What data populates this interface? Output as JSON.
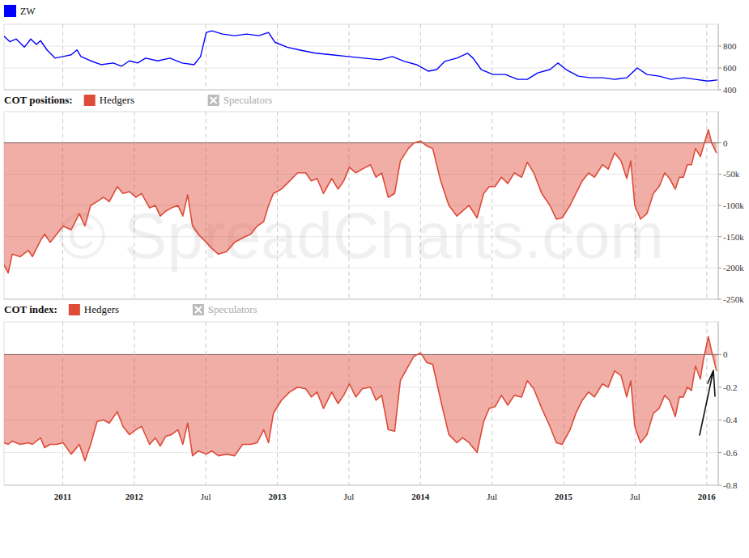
{
  "chart_data": [
    {
      "type": "line",
      "x": [
        2011.09,
        2011.13,
        2011.175,
        2011.232,
        2011.277,
        2011.316,
        2011.345,
        2011.39,
        2011.446,
        2011.503,
        2011.559,
        2011.599,
        2011.627,
        2011.695,
        2011.768,
        2011.853,
        2011.91,
        2011.966,
        2012.023,
        2012.079,
        2012.164,
        2012.249,
        2012.333,
        2012.418,
        2012.463,
        2012.503,
        2012.542,
        2012.616,
        2012.701,
        2012.785,
        2012.87,
        2012.938,
        2012.983,
        2013.068,
        2013.153,
        2013.266,
        2013.379,
        2013.492,
        2013.605,
        2013.718,
        2013.802,
        2013.887,
        2013.972,
        2014.056,
        2014.113,
        2014.169,
        2014.254,
        2014.328,
        2014.367,
        2014.424,
        2014.508,
        2014.593,
        2014.678,
        2014.746,
        2014.819,
        2014.904,
        2014.96,
        2015.017,
        2015.102,
        2015.186,
        2015.271,
        2015.356,
        2015.441,
        2015.514,
        2015.582,
        2015.667,
        2015.751,
        2015.836,
        2015.921,
        2016.006,
        2016.073
      ],
      "series": [
        {
          "name": "ZW",
          "color": "#0000ff",
          "values": [
            890,
            840,
            865,
            790,
            865,
            815,
            850,
            765,
            690,
            705,
            720,
            765,
            705,
            665,
            630,
            645,
            615,
            665,
            645,
            690,
            665,
            690,
            645,
            630,
            705,
            925,
            940,
            910,
            895,
            910,
            895,
            925,
            835,
            790,
            765,
            735,
            720,
            705,
            690,
            675,
            705,
            660,
            630,
            570,
            585,
            660,
            690,
            735,
            690,
            585,
            540,
            540,
            495,
            495,
            555,
            585,
            645,
            585,
            525,
            510,
            510,
            495,
            510,
            600,
            540,
            525,
            495,
            510,
            495,
            480,
            490
          ]
        }
      ],
      "xlim": [
        2011.09,
        2016.08
      ],
      "xticks": [
        {
          "value": 2011.5,
          "label": "2011"
        },
        2012,
        {
          "value": 2012.5,
          "label": "Jul"
        },
        2013,
        {
          "value": 2013.5,
          "label": "Jul"
        },
        2014,
        {
          "value": 2014.5,
          "label": "Jul"
        },
        2015,
        {
          "value": 2015.5,
          "label": "Jul"
        },
        2016
      ],
      "ylim": [
        400,
        1000
      ],
      "yticks": [
        400,
        600,
        800
      ],
      "grid": true,
      "legend": "top-left",
      "tick_labels": "y"
    },
    {
      "type": "area",
      "title": "COT positions:",
      "annotations": [
        "© SpreadCharts.com"
      ],
      "x": [
        2011.09,
        2011.119,
        2011.147,
        2011.203,
        2011.26,
        2011.288,
        2011.345,
        2011.373,
        2011.412,
        2011.458,
        2011.503,
        2011.559,
        2011.616,
        2011.655,
        2011.695,
        2011.74,
        2011.785,
        2011.825,
        2011.881,
        2011.921,
        2011.966,
        2012.011,
        2012.051,
        2012.107,
        2012.147,
        2012.181,
        2012.22,
        2012.26,
        2012.305,
        2012.339,
        2012.373,
        2012.407,
        2012.446,
        2012.503,
        2012.542,
        2012.588,
        2012.644,
        2012.701,
        2012.757,
        2012.814,
        2012.859,
        2012.904,
        2012.938,
        2012.972,
        2013.028,
        2013.085,
        2013.141,
        2013.198,
        2013.237,
        2013.277,
        2013.322,
        2013.379,
        2013.424,
        2013.463,
        2013.503,
        2013.548,
        2013.593,
        2013.65,
        2013.689,
        2013.729,
        2013.774,
        2013.819,
        2013.859,
        2013.915,
        2013.955,
        2014,
        2014.045,
        2014.085,
        2014.141,
        2014.198,
        2014.254,
        2014.294,
        2014.339,
        2014.395,
        2014.441,
        2014.48,
        2014.52,
        2014.565,
        2014.61,
        2014.655,
        2014.706,
        2014.746,
        2014.791,
        2014.847,
        2014.904,
        2014.949,
        2014.989,
        2015.045,
        2015.085,
        2015.13,
        2015.175,
        2015.215,
        2015.271,
        2015.311,
        2015.356,
        2015.401,
        2015.441,
        2015.469,
        2015.497,
        2015.537,
        2015.582,
        2015.627,
        2015.667,
        2015.706,
        2015.74,
        2015.78,
        2015.808,
        2015.836,
        2015.864,
        2015.893,
        2015.921,
        2015.955,
        2015.977,
        2016.011,
        2016.034,
        2016.068
      ],
      "series": [
        {
          "name": "Hedgers",
          "color": "#dd4b39",
          "values": [
            -195000,
            -208000,
            -178000,
            -182000,
            -172000,
            -182000,
            -156000,
            -146000,
            -159000,
            -146000,
            -133000,
            -139000,
            -113000,
            -133000,
            -100000,
            -94000,
            -87000,
            -94000,
            -70000,
            -81000,
            -78000,
            -87000,
            -81000,
            -104000,
            -100000,
            -117000,
            -109000,
            -104000,
            -100000,
            -117000,
            -83000,
            -133000,
            -146000,
            -159000,
            -169000,
            -178000,
            -174000,
            -159000,
            -152000,
            -146000,
            -133000,
            -126000,
            -100000,
            -81000,
            -74000,
            -61000,
            -48000,
            -48000,
            -61000,
            -57000,
            -81000,
            -57000,
            -74000,
            -61000,
            -39000,
            -48000,
            -42000,
            -35000,
            -55000,
            -48000,
            -87000,
            -81000,
            -29000,
            -9000,
            0,
            3000,
            -5000,
            -9000,
            -61000,
            -100000,
            -117000,
            -109000,
            -100000,
            -120000,
            -81000,
            -70000,
            -70000,
            -55000,
            -65000,
            -48000,
            -55000,
            -31000,
            -48000,
            -81000,
            -100000,
            -122000,
            -120000,
            -100000,
            -81000,
            -61000,
            -48000,
            -55000,
            -35000,
            -42000,
            -16000,
            -29000,
            -57000,
            -29000,
            -100000,
            -122000,
            -113000,
            -81000,
            -70000,
            -48000,
            -57000,
            -74000,
            -55000,
            -55000,
            -35000,
            -35000,
            -9000,
            -22000,
            -5000,
            21000,
            0,
            -16000
          ]
        },
        {
          "name": "Speculators",
          "color": "#bbbbbb",
          "values": [
            null,
            null,
            null,
            null,
            null,
            null,
            null,
            null,
            null,
            null,
            null,
            null,
            null,
            null,
            null,
            null,
            null,
            null,
            null,
            null,
            null,
            null,
            null,
            null,
            null,
            null,
            null,
            null,
            null,
            null,
            null,
            null,
            null,
            null,
            null,
            null,
            null,
            null,
            null,
            null,
            null,
            null,
            null,
            null,
            null,
            null,
            null,
            null,
            null,
            null,
            null,
            null,
            null,
            null,
            null,
            null,
            null,
            null,
            null,
            null,
            null,
            null,
            null,
            null,
            null,
            null,
            null,
            null,
            null,
            null,
            null,
            null,
            null,
            null,
            null,
            null,
            null,
            null,
            null,
            null,
            null,
            null,
            null,
            null,
            null,
            null,
            null,
            null,
            null,
            null,
            null,
            null,
            null,
            null,
            null,
            null,
            null,
            null,
            null,
            null,
            null,
            null,
            null,
            null,
            null,
            null,
            null,
            null,
            null,
            null,
            null,
            null,
            null,
            null,
            null,
            null
          ]
        }
      ],
      "xlim": [
        2011.09,
        2016.08
      ],
      "xticks": [
        {
          "value": 2011.5,
          "label": "2011"
        },
        2012,
        {
          "value": 2012.5,
          "label": "Jul"
        },
        2013,
        {
          "value": 2013.5,
          "label": "Jul"
        },
        2014,
        {
          "value": 2014.5,
          "label": "Jul"
        },
        2015,
        {
          "value": 2015.5,
          "label": "Jul"
        },
        2016
      ],
      "ylim": [
        -250000,
        50000
      ],
      "yticks": [
        0,
        {
          "value": -50000,
          "label": "-50k"
        },
        {
          "value": -100000,
          "label": "-100k"
        },
        {
          "value": -150000,
          "label": "-150k"
        },
        {
          "value": -200000,
          "label": "-200k"
        },
        {
          "value": -250000,
          "label": "-250k"
        }
      ],
      "grid": true,
      "legend": "top-left",
      "tick_labels": "y"
    },
    {
      "type": "area",
      "title": "COT index:",
      "x": [
        2011.09,
        2011.119,
        2011.147,
        2011.203,
        2011.26,
        2011.288,
        2011.345,
        2011.373,
        2011.412,
        2011.458,
        2011.503,
        2011.559,
        2011.616,
        2011.655,
        2011.695,
        2011.74,
        2011.785,
        2011.825,
        2011.881,
        2011.921,
        2011.966,
        2012.011,
        2012.051,
        2012.107,
        2012.147,
        2012.181,
        2012.22,
        2012.26,
        2012.305,
        2012.339,
        2012.373,
        2012.407,
        2012.446,
        2012.503,
        2012.542,
        2012.588,
        2012.644,
        2012.701,
        2012.757,
        2012.814,
        2012.859,
        2012.904,
        2012.938,
        2012.972,
        2013.028,
        2013.085,
        2013.141,
        2013.198,
        2013.237,
        2013.277,
        2013.322,
        2013.379,
        2013.424,
        2013.463,
        2013.503,
        2013.548,
        2013.593,
        2013.65,
        2013.689,
        2013.729,
        2013.774,
        2013.819,
        2013.859,
        2013.915,
        2013.955,
        2014,
        2014.045,
        2014.085,
        2014.141,
        2014.198,
        2014.254,
        2014.294,
        2014.339,
        2014.395,
        2014.441,
        2014.48,
        2014.52,
        2014.565,
        2014.61,
        2014.655,
        2014.706,
        2014.746,
        2014.791,
        2014.847,
        2014.904,
        2014.949,
        2014.989,
        2015.045,
        2015.085,
        2015.13,
        2015.175,
        2015.215,
        2015.271,
        2015.311,
        2015.356,
        2015.401,
        2015.441,
        2015.469,
        2015.497,
        2015.537,
        2015.582,
        2015.627,
        2015.667,
        2015.706,
        2015.74,
        2015.78,
        2015.808,
        2015.836,
        2015.864,
        2015.893,
        2015.921,
        2015.955,
        2015.977,
        2016.011,
        2016.034,
        2016.068
      ],
      "series": [
        {
          "name": "Hedgers",
          "color": "#dd4b39",
          "values": [
            -0.54,
            -0.55,
            -0.53,
            -0.55,
            -0.54,
            -0.55,
            -0.51,
            -0.57,
            -0.55,
            -0.55,
            -0.54,
            -0.61,
            -0.55,
            -0.65,
            -0.55,
            -0.41,
            -0.4,
            -0.42,
            -0.35,
            -0.44,
            -0.49,
            -0.46,
            -0.44,
            -0.55,
            -0.51,
            -0.56,
            -0.5,
            -0.49,
            -0.46,
            -0.55,
            -0.42,
            -0.62,
            -0.59,
            -0.61,
            -0.59,
            -0.62,
            -0.61,
            -0.62,
            -0.55,
            -0.55,
            -0.54,
            -0.46,
            -0.54,
            -0.36,
            -0.28,
            -0.23,
            -0.2,
            -0.21,
            -0.26,
            -0.23,
            -0.33,
            -0.23,
            -0.3,
            -0.25,
            -0.18,
            -0.26,
            -0.21,
            -0.2,
            -0.28,
            -0.25,
            -0.46,
            -0.47,
            -0.16,
            -0.07,
            -0.01,
            0.01,
            -0.05,
            -0.06,
            -0.28,
            -0.49,
            -0.54,
            -0.51,
            -0.54,
            -0.6,
            -0.41,
            -0.33,
            -0.32,
            -0.25,
            -0.31,
            -0.25,
            -0.26,
            -0.16,
            -0.21,
            -0.33,
            -0.44,
            -0.54,
            -0.55,
            -0.46,
            -0.36,
            -0.28,
            -0.23,
            -0.26,
            -0.18,
            -0.2,
            -0.1,
            -0.13,
            -0.26,
            -0.16,
            -0.44,
            -0.54,
            -0.49,
            -0.36,
            -0.33,
            -0.25,
            -0.28,
            -0.38,
            -0.26,
            -0.26,
            -0.2,
            -0.22,
            -0.07,
            -0.15,
            -0.03,
            0.11,
            0.02,
            -0.1
          ]
        },
        {
          "name": "Speculators",
          "color": "#bbbbbb",
          "values": [
            null,
            null,
            null,
            null,
            null,
            null,
            null,
            null,
            null,
            null,
            null,
            null,
            null,
            null,
            null,
            null,
            null,
            null,
            null,
            null,
            null,
            null,
            null,
            null,
            null,
            null,
            null,
            null,
            null,
            null,
            null,
            null,
            null,
            null,
            null,
            null,
            null,
            null,
            null,
            null,
            null,
            null,
            null,
            null,
            null,
            null,
            null,
            null,
            null,
            null,
            null,
            null,
            null,
            null,
            null,
            null,
            null,
            null,
            null,
            null,
            null,
            null,
            null,
            null,
            null,
            null,
            null,
            null,
            null,
            null,
            null,
            null,
            null,
            null,
            null,
            null,
            null,
            null,
            null,
            null,
            null,
            null,
            null,
            null,
            null,
            null,
            null,
            null,
            null,
            null,
            null,
            null,
            null,
            null,
            null,
            null,
            null,
            null,
            null,
            null,
            null,
            null,
            null,
            null,
            null,
            null,
            null,
            null,
            null,
            null,
            null,
            null,
            null,
            null,
            null,
            null
          ]
        }
      ],
      "xlim": [
        2011.09,
        2016.08
      ],
      "xticks": [
        {
          "value": 2011.5,
          "label": "2011"
        },
        2012,
        {
          "value": 2012.5,
          "label": "Jul"
        },
        2013,
        {
          "value": 2013.5,
          "label": "Jul"
        },
        2014,
        {
          "value": 2014.5,
          "label": "Jul"
        },
        2015,
        {
          "value": 2015.5,
          "label": "Jul"
        },
        2016
      ],
      "ylim": [
        -0.8,
        0.2
      ],
      "yticks": [
        0,
        -0.2,
        -0.4,
        -0.6,
        -0.8
      ],
      "grid": true,
      "legend": "top-left"
    }
  ]
}
